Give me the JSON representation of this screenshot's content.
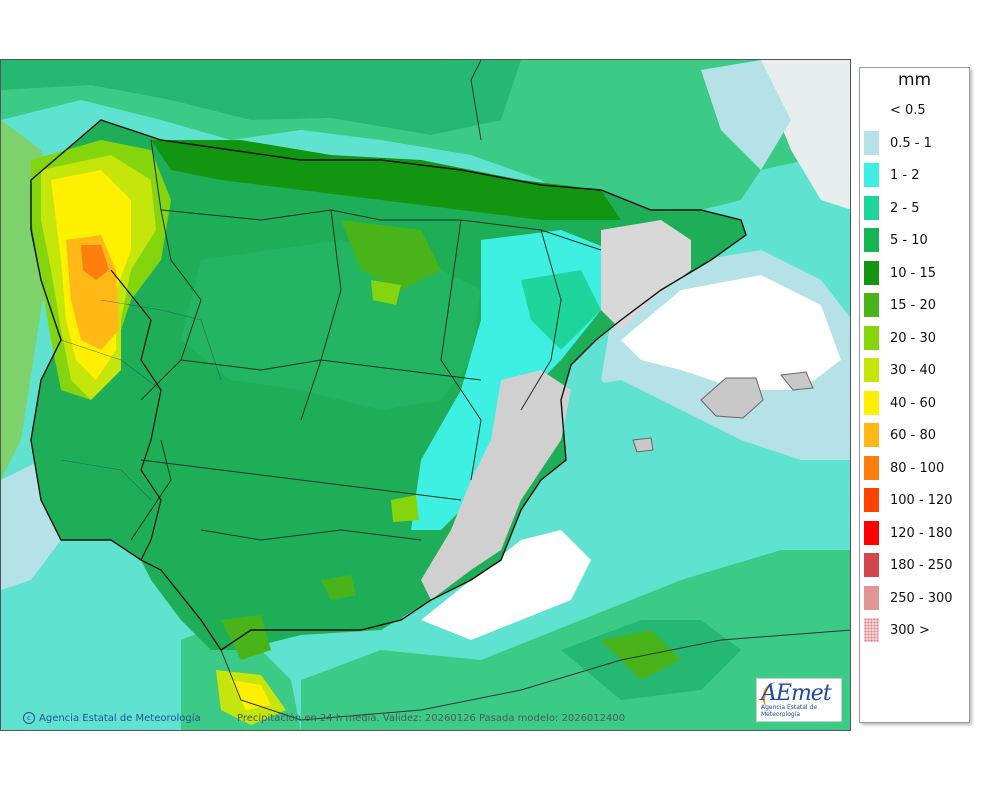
{
  "map": {
    "copyright": "Agencia Estatal de Meteorología",
    "caption": "Precipitación en 24 h media. Validez: 20260126 Pasada modelo: 2026012400",
    "logo": {
      "word": "AEmet",
      "sub": "Agencia Estatal de Meteorología"
    }
  },
  "legend": {
    "unit": "mm",
    "items": [
      {
        "label": "< 0.5",
        "color": "#ffffff"
      },
      {
        "label": "0.5 - 1",
        "color": "#b4e2e6"
      },
      {
        "label": "1 - 2",
        "color": "#3ef0e2"
      },
      {
        "label": "2 - 5",
        "color": "#1ed69c"
      },
      {
        "label": "5 - 10",
        "color": "#17b552"
      },
      {
        "label": "10 - 15",
        "color": "#129612"
      },
      {
        "label": "15 - 20",
        "color": "#48b41a"
      },
      {
        "label": "20 - 30",
        "color": "#84d40e"
      },
      {
        "label": "30 - 40",
        "color": "#c4e60a"
      },
      {
        "label": "40 - 60",
        "color": "#fff000"
      },
      {
        "label": "60 - 80",
        "color": "#ffb816"
      },
      {
        "label": "80 - 100",
        "color": "#ff7e0e"
      },
      {
        "label": "100 - 120",
        "color": "#ff4200"
      },
      {
        "label": "120 - 180",
        "color": "#ff0000"
      },
      {
        "label": "180 - 250",
        "color": "#d2474e"
      },
      {
        "label": "250 - 300",
        "color": "#e09696"
      },
      {
        "label": "300 >",
        "color": "#f6d2d2"
      }
    ]
  }
}
